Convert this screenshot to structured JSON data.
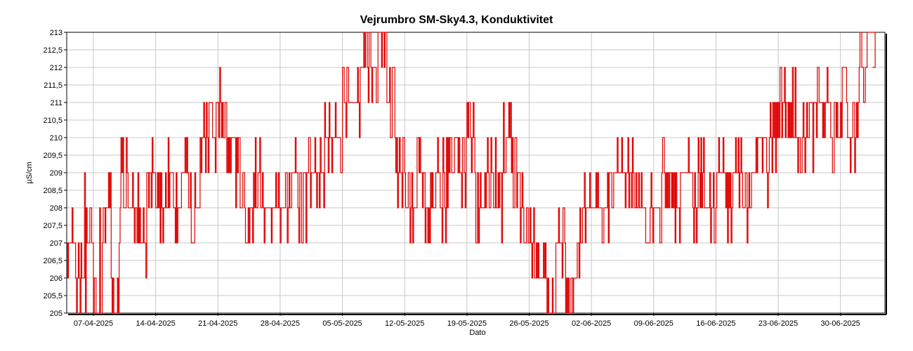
{
  "chart_data": {
    "type": "line",
    "title": "Vejrumbro SM-Sky4.3, Konduktivitet",
    "xlabel": "Dato",
    "ylabel": "µS/cm",
    "ylim": [
      205,
      213
    ],
    "xlim": [
      "2025-04-04",
      "2025-07-05"
    ],
    "y_ticks": [
      "205",
      "205,5",
      "206",
      "206,5",
      "207",
      "207,5",
      "208",
      "208,5",
      "209",
      "209,5",
      "210",
      "210,5",
      "211",
      "211,5",
      "212",
      "212,5",
      "213"
    ],
    "x_ticks": [
      "07-04-2025",
      "14-04-2025",
      "21-04-2025",
      "28-04-2025",
      "05-05-2025",
      "12-05-2025",
      "19-05-2025",
      "26-05-2025",
      "02-06-2025",
      "09-06-2025",
      "16-06-2025",
      "23-06-2025",
      "30-06-2025"
    ],
    "grid": true,
    "series_color": "#e00000",
    "series": [
      {
        "x": [
          "2025-04-04",
          "2025-04-05",
          "2025-04-06",
          "2025-04-07",
          "2025-04-08",
          "2025-04-09",
          "2025-04-10",
          "2025-04-11",
          "2025-04-12",
          "2025-04-13",
          "2025-04-14",
          "2025-04-15",
          "2025-04-16",
          "2025-04-17",
          "2025-04-18",
          "2025-04-19",
          "2025-04-20",
          "2025-04-21",
          "2025-04-22",
          "2025-04-23",
          "2025-04-24",
          "2025-04-25",
          "2025-04-26",
          "2025-04-27",
          "2025-04-28",
          "2025-04-29",
          "2025-04-30",
          "2025-05-01",
          "2025-05-02",
          "2025-05-03",
          "2025-05-04",
          "2025-05-05",
          "2025-05-06",
          "2025-05-07",
          "2025-05-08",
          "2025-05-09",
          "2025-05-10",
          "2025-05-11",
          "2025-05-12",
          "2025-05-13",
          "2025-05-14",
          "2025-05-15",
          "2025-05-16",
          "2025-05-17",
          "2025-05-18",
          "2025-05-19",
          "2025-05-20",
          "2025-05-21",
          "2025-05-22",
          "2025-05-23",
          "2025-05-24",
          "2025-05-25",
          "2025-05-26",
          "2025-05-27",
          "2025-05-28",
          "2025-05-29",
          "2025-05-30",
          "2025-05-31",
          "2025-06-01",
          "2025-06-02",
          "2025-06-03",
          "2025-06-04",
          "2025-06-05",
          "2025-06-06",
          "2025-06-07",
          "2025-06-08",
          "2025-06-09",
          "2025-06-10",
          "2025-06-11",
          "2025-06-12",
          "2025-06-13",
          "2025-06-14",
          "2025-06-15",
          "2025-06-16",
          "2025-06-17",
          "2025-06-18",
          "2025-06-19",
          "2025-06-20",
          "2025-06-21",
          "2025-06-22",
          "2025-06-23",
          "2025-06-24",
          "2025-06-25",
          "2025-06-26",
          "2025-06-27",
          "2025-06-28",
          "2025-06-29",
          "2025-06-30",
          "2025-07-01",
          "2025-07-02",
          "2025-07-03"
        ],
        "values": [
          207,
          206,
          208,
          205,
          208,
          206,
          209,
          208,
          207,
          209,
          208,
          209,
          208,
          209,
          208,
          210,
          210,
          211,
          210,
          209,
          208,
          209,
          208,
          208,
          208,
          209,
          208,
          209,
          209,
          210,
          210,
          211,
          211,
          212,
          212,
          213,
          211,
          209,
          208,
          209,
          208,
          209,
          208,
          210,
          209,
          210,
          208,
          209,
          208,
          210,
          209,
          208,
          207,
          206,
          205,
          207,
          206,
          207,
          208,
          208,
          208,
          209,
          209,
          209,
          208,
          208,
          208,
          209,
          208,
          209,
          208,
          209,
          208,
          209,
          208,
          209,
          208,
          209,
          209,
          210,
          211,
          211,
          210,
          210,
          211,
          211,
          210,
          211,
          210,
          212,
          213
        ]
      }
    ]
  }
}
